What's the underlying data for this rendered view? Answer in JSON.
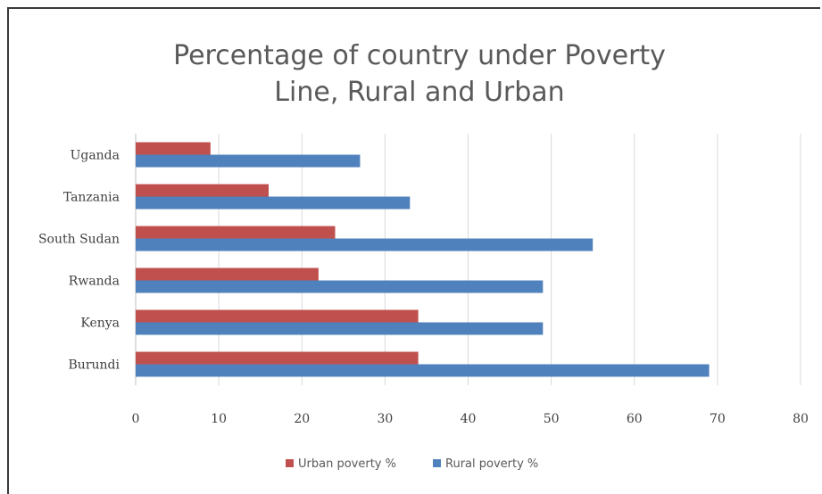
{
  "chart_data": {
    "type": "bar",
    "orientation": "horizontal",
    "title": "Percentage of country under Poverty Line, Rural and Urban",
    "title_lines": [
      "Percentage of country under Poverty",
      "Line, Rural and Urban"
    ],
    "categories": [
      "Uganda",
      "Tanzania",
      "South Sudan",
      "Rwanda",
      "Kenya",
      "Burundi"
    ],
    "series": [
      {
        "name": "Urban poverty %",
        "color": "#c0504d",
        "values": [
          9,
          16,
          24,
          22,
          34,
          34
        ]
      },
      {
        "name": "Rural poverty %",
        "color": "#4f81bd",
        "values": [
          27,
          33,
          55,
          49,
          49,
          69
        ]
      }
    ],
    "xlim": [
      0,
      80
    ],
    "xticks": [
      0,
      10,
      20,
      30,
      40,
      50,
      60,
      70,
      80
    ],
    "grid": true,
    "legend_position": "bottom"
  }
}
